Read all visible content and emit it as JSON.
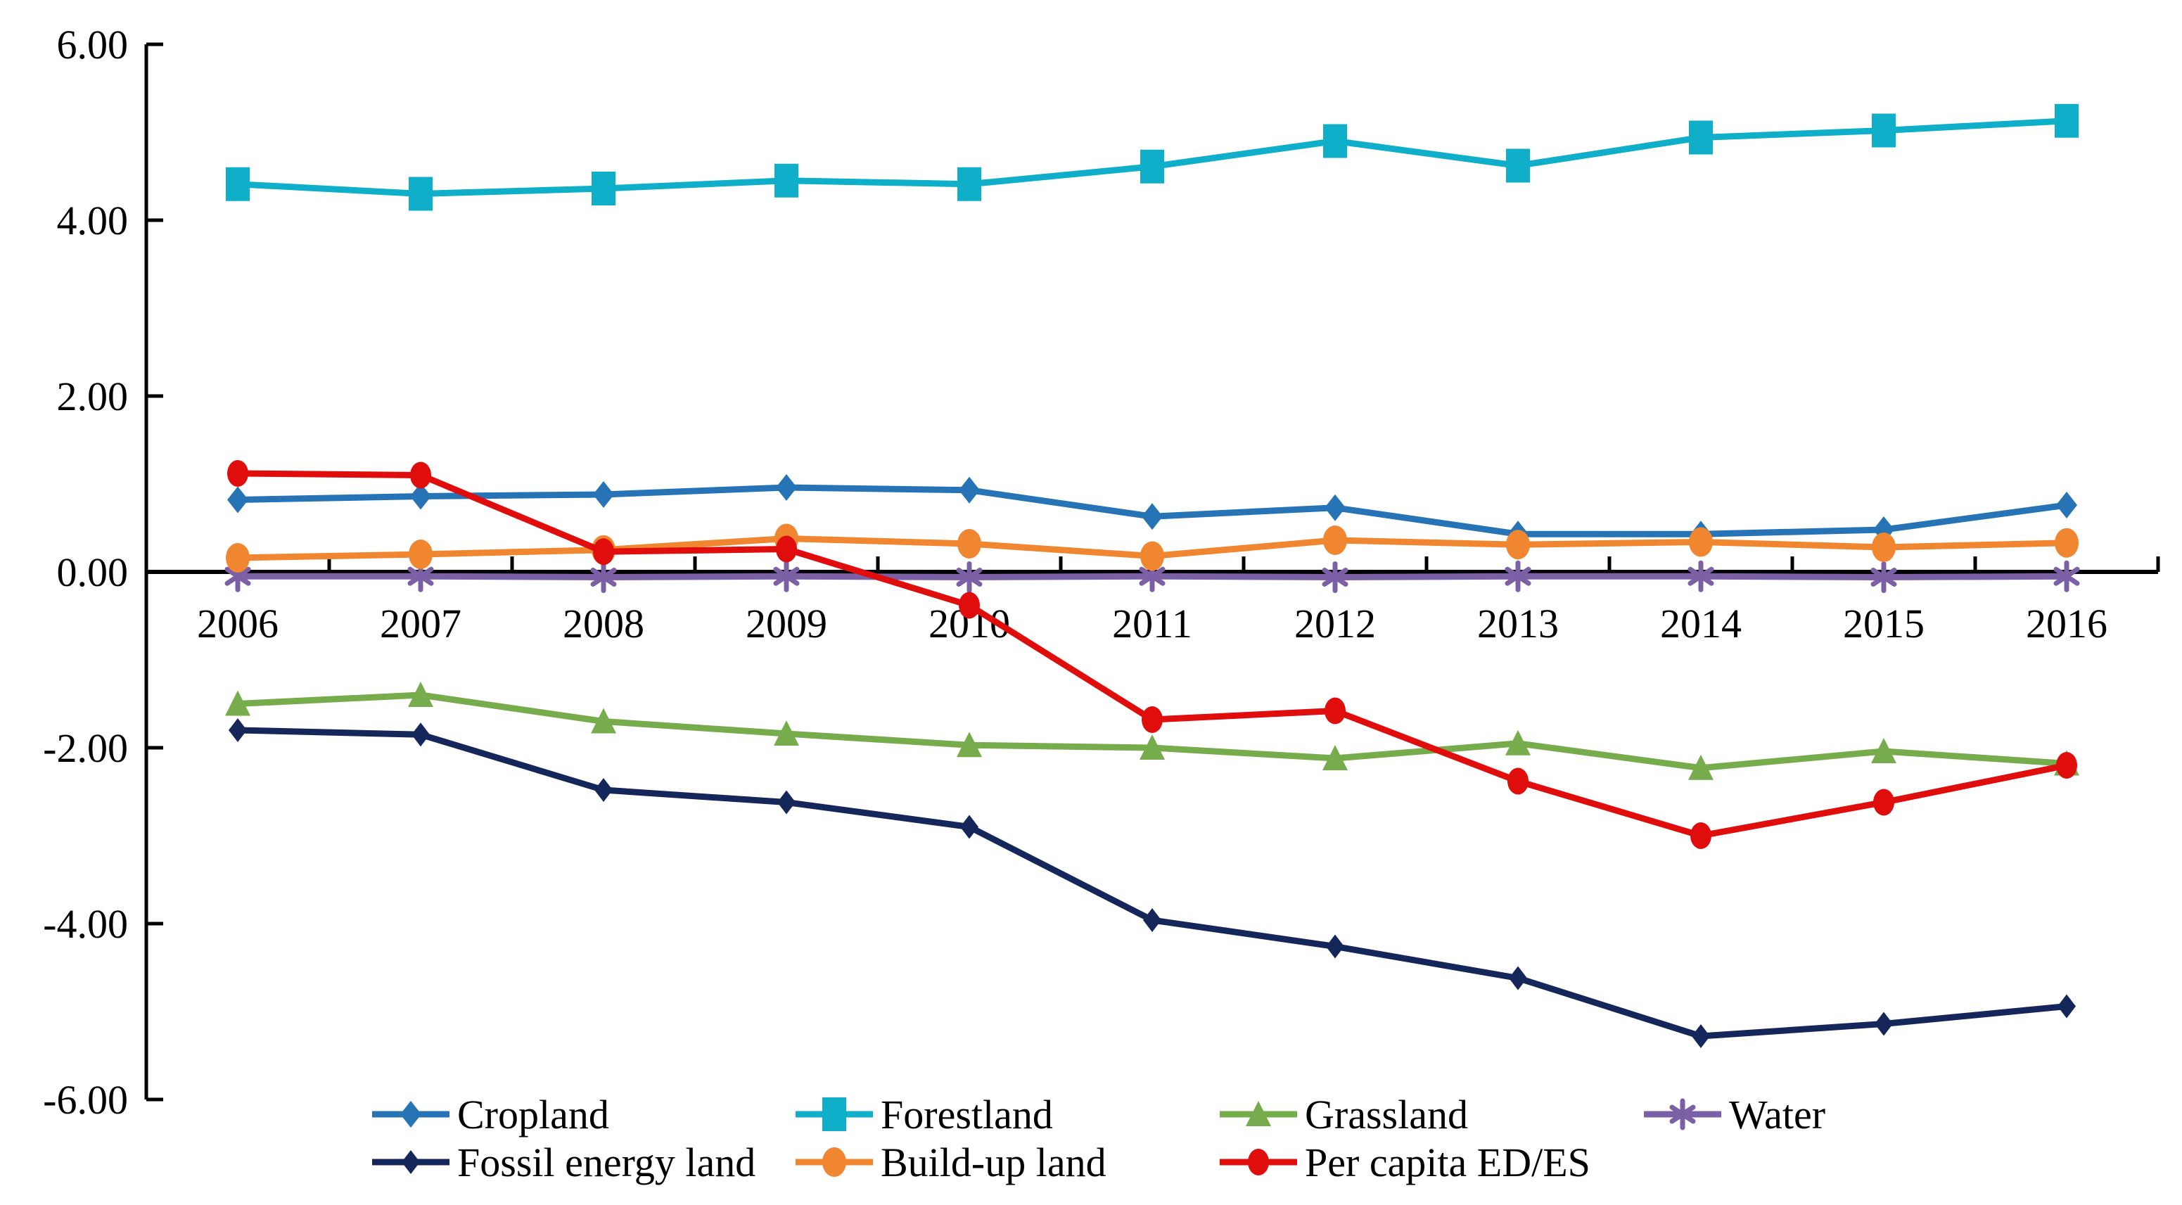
{
  "chart_data": {
    "type": "line",
    "title": "",
    "xlabel": "",
    "ylabel": "",
    "background": "#ffffff",
    "axis_color": "#000000",
    "grid": false,
    "categories": [
      "2006",
      "2007",
      "2008",
      "2009",
      "2010",
      "2011",
      "2012",
      "2013",
      "2014",
      "2015",
      "2016"
    ],
    "y_axis": {
      "min": -6,
      "max": 6,
      "step": 2,
      "tick_values": [
        6,
        4,
        2,
        0,
        -2,
        -4,
        -6
      ],
      "tick_labels": [
        "6.00",
        "4.00",
        "2.00",
        "0.00",
        "-2.00",
        "-4.00",
        "-6.00"
      ]
    },
    "series": [
      {
        "name": "Cropland",
        "color": "#2674B5",
        "marker": "diamond",
        "values": [
          0.82,
          0.86,
          0.88,
          0.96,
          0.93,
          0.63,
          0.73,
          0.43,
          0.43,
          0.48,
          0.76
        ]
      },
      {
        "name": "Forestland",
        "color": "#0FAEC9",
        "marker": "square",
        "values": [
          4.41,
          4.3,
          4.36,
          4.45,
          4.41,
          4.61,
          4.9,
          4.62,
          4.94,
          5.02,
          5.13
        ]
      },
      {
        "name": "Grassland",
        "color": "#77AC4C",
        "marker": "triangle",
        "values": [
          -1.5,
          -1.4,
          -1.7,
          -1.84,
          -1.97,
          -2.0,
          -2.12,
          -1.95,
          -2.23,
          -2.04,
          -2.18
        ]
      },
      {
        "name": "Water",
        "color": "#7B60A6",
        "marker": "asterisk",
        "values": [
          -0.05,
          -0.05,
          -0.06,
          -0.05,
          -0.06,
          -0.05,
          -0.06,
          -0.05,
          -0.05,
          -0.06,
          -0.05
        ]
      },
      {
        "name": "Fossil energy land",
        "color": "#15265B",
        "marker": "diamond-small",
        "values": [
          -1.8,
          -1.85,
          -2.48,
          -2.62,
          -2.9,
          -3.96,
          -4.26,
          -4.62,
          -5.28,
          -5.14,
          -4.94
        ]
      },
      {
        "name": "Build-up land",
        "color": "#F0862F",
        "marker": "circle",
        "values": [
          0.16,
          0.2,
          0.25,
          0.38,
          0.32,
          0.18,
          0.36,
          0.31,
          0.34,
          0.28,
          0.33
        ]
      },
      {
        "name": "Per capita ED/ES",
        "color": "#E00D0D",
        "marker": "circle-small",
        "values": [
          1.12,
          1.1,
          0.23,
          0.26,
          -0.38,
          -1.68,
          -1.58,
          -2.38,
          -3.0,
          -2.62,
          -2.2
        ]
      }
    ],
    "legend": {
      "position": "bottom",
      "rows": [
        [
          "Cropland",
          "Forestland",
          "Grassland",
          "Water"
        ],
        [
          "Fossil energy land",
          "Build-up land",
          "Per capita ED/ES"
        ]
      ]
    }
  }
}
